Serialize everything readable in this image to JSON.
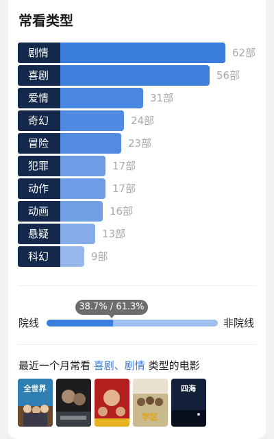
{
  "section_title": "常看类型",
  "chart_data": {
    "type": "bar",
    "orientation": "horizontal",
    "categories": [
      "剧情",
      "喜剧",
      "爱情",
      "奇幻",
      "冒险",
      "犯罪",
      "动作",
      "动画",
      "悬疑",
      "科幻"
    ],
    "values": [
      62,
      56,
      31,
      24,
      23,
      17,
      17,
      16,
      13,
      9
    ],
    "value_labels": [
      "62部",
      "56部",
      "31部",
      "24部",
      "23部",
      "17部",
      "17部",
      "16部",
      "13部",
      "9部"
    ],
    "bar_colors": [
      "#3b7ddd",
      "#3f80de",
      "#4a87e0",
      "#5089e1",
      "#538be1",
      "#6e9de6",
      "#6e9de6",
      "#729fe6",
      "#86ace9",
      "#98b8ec"
    ],
    "label_bg": "#13284a"
  },
  "ratio": {
    "tooltip": "38.7% / 61.3%",
    "left_label": "院线",
    "right_label": "非院线",
    "left_fraction": 0.387,
    "left_color": "#3b7ddd",
    "right_color": "#9ec0ee"
  },
  "recent": {
    "prefix": "最近一个月常看",
    "genres": "喜剧、剧情",
    "suffix": "类型的电影"
  },
  "posters": [
    {
      "name": "movie-poster-1",
      "title": "全世界"
    },
    {
      "name": "movie-poster-2",
      "title": ""
    },
    {
      "name": "movie-poster-3",
      "title": ""
    },
    {
      "name": "movie-poster-4",
      "title": "学区"
    },
    {
      "name": "movie-poster-5",
      "title": "四海"
    }
  ]
}
